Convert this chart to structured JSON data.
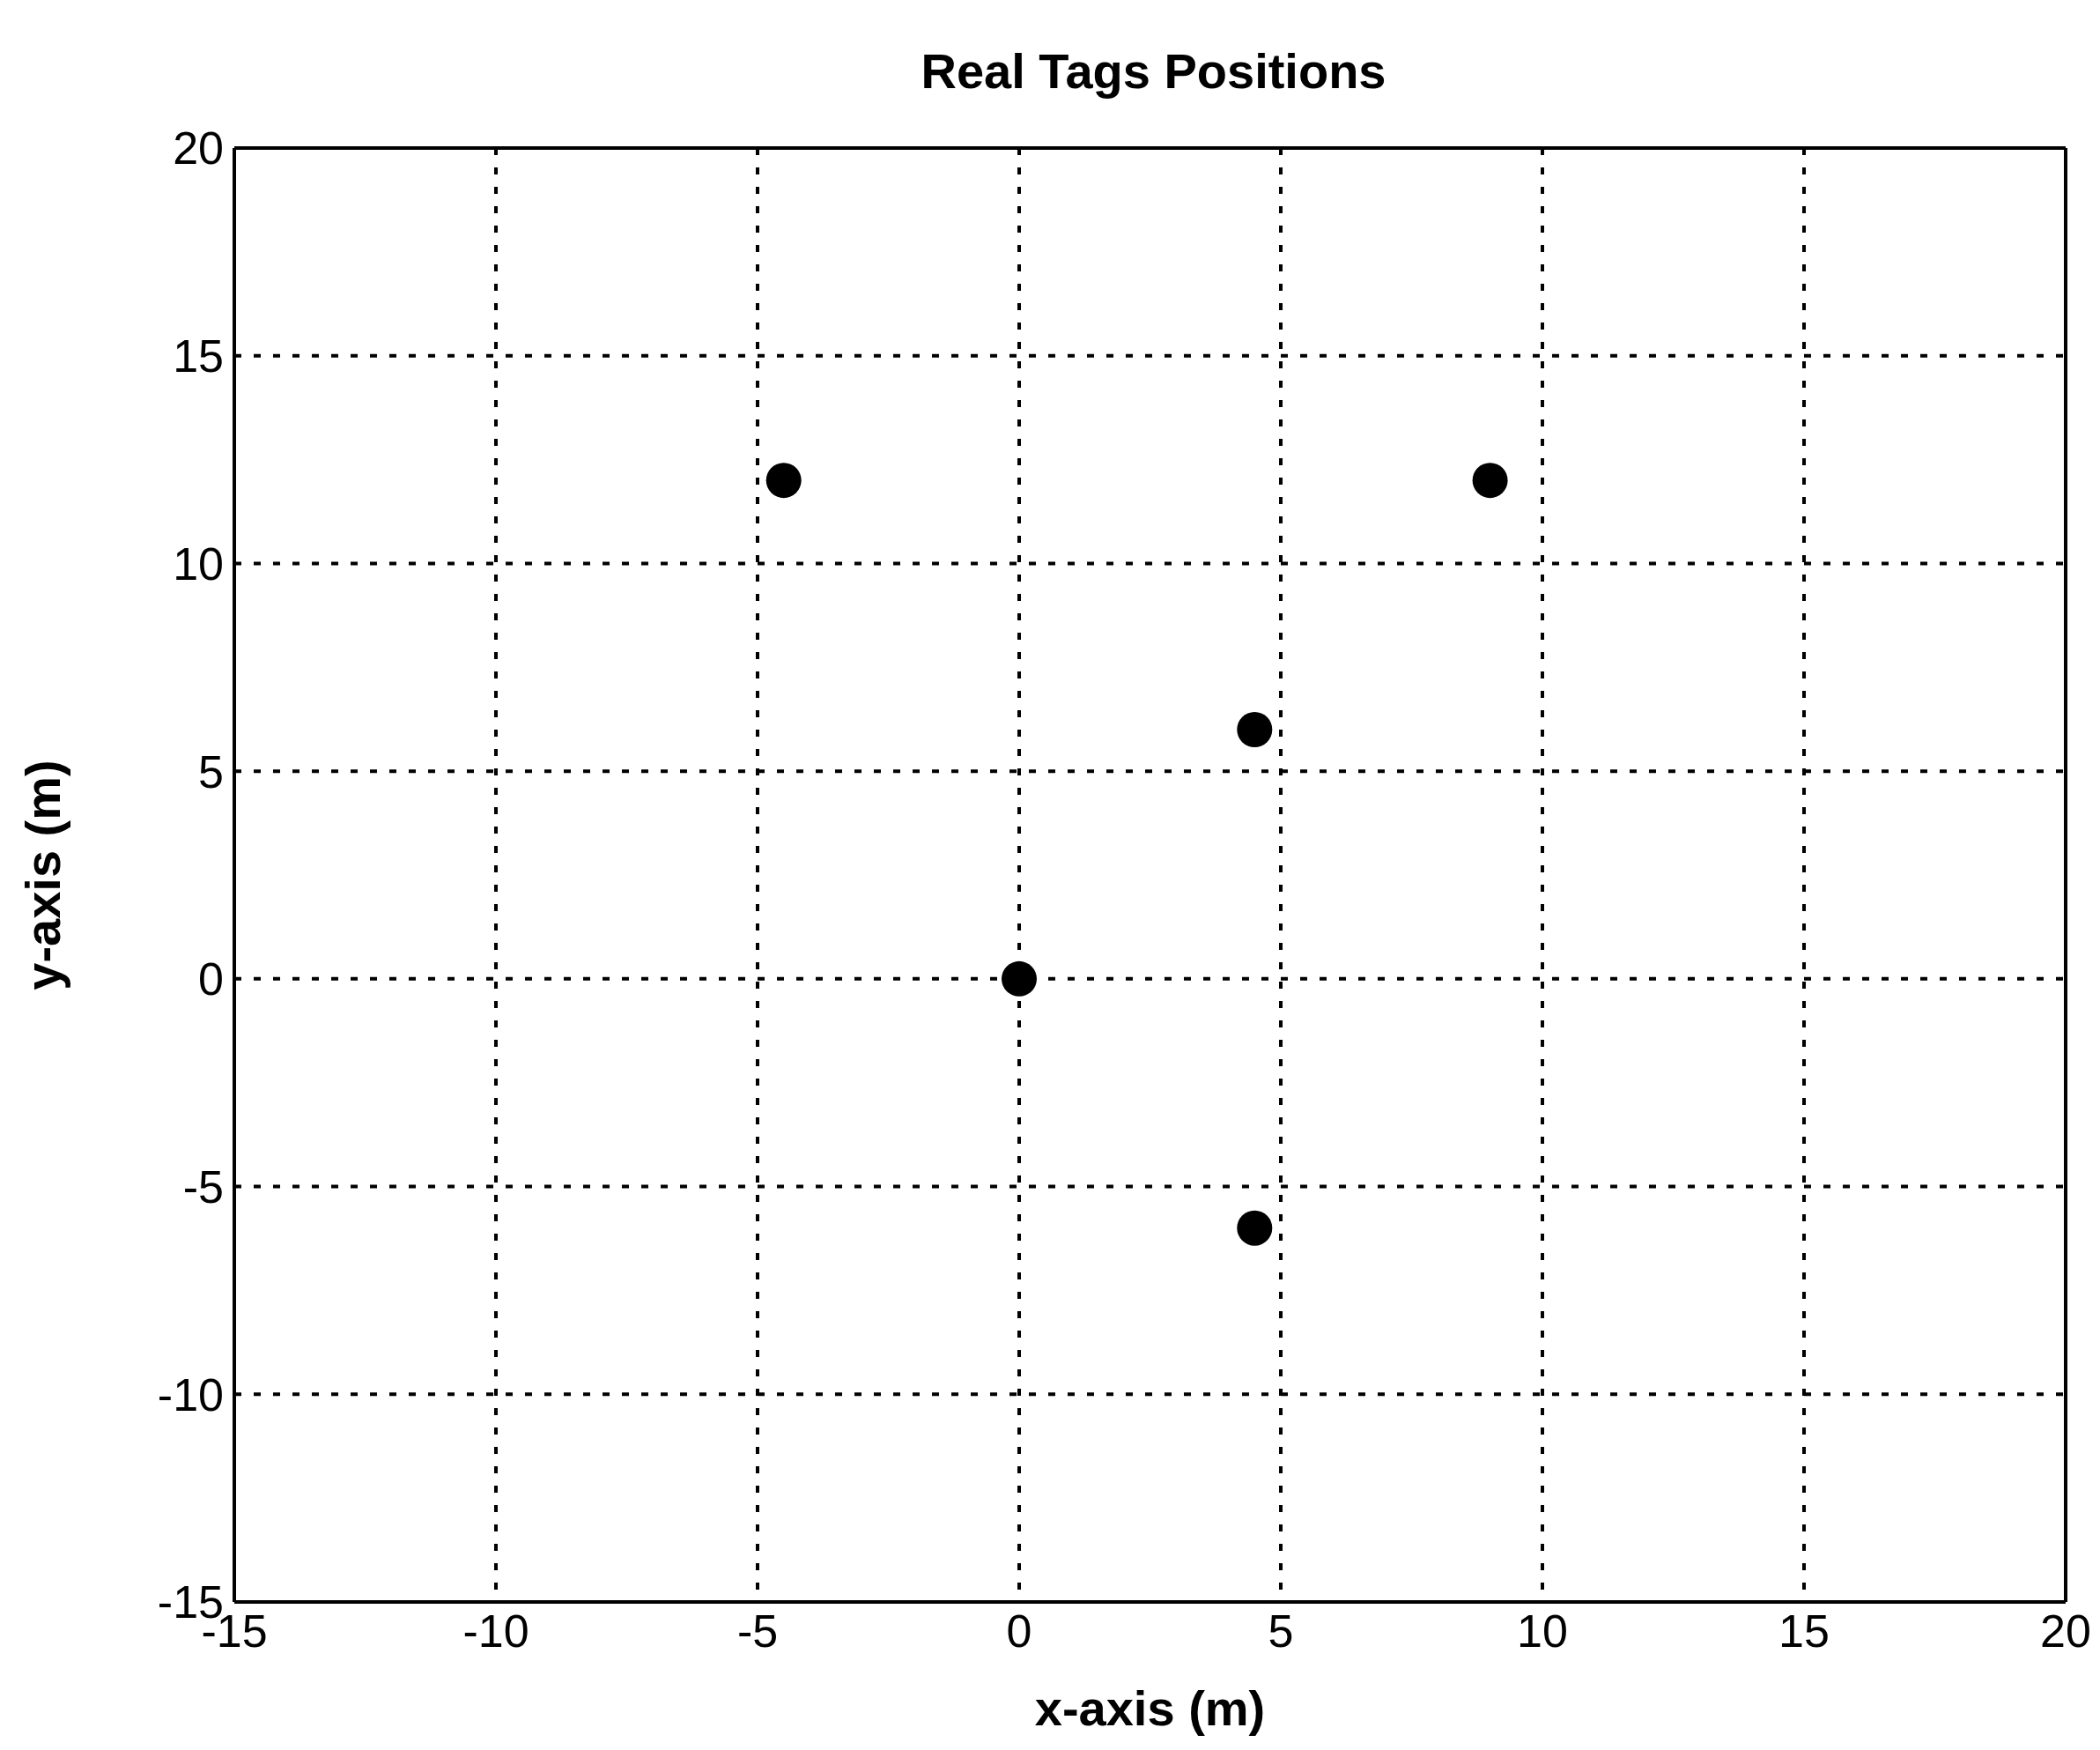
{
  "chart_data": {
    "type": "scatter",
    "title": "Real Tags Positions",
    "xlabel": "x-axis (m)",
    "ylabel": "y-axis (m)",
    "x": [
      -4.5,
      9,
      4.5,
      0,
      4.5
    ],
    "values": [
      12,
      12,
      6,
      0,
      -6
    ],
    "color": "#000000",
    "marker": "circle",
    "xlim": [
      -15,
      20
    ],
    "xticks": [
      -15,
      -10,
      -5,
      0,
      5,
      10,
      15,
      20
    ],
    "ylim": [
      -15,
      20
    ],
    "yticks": [
      -15,
      -10,
      -5,
      0,
      5,
      10,
      15,
      20
    ],
    "grid": true,
    "legend": false
  }
}
